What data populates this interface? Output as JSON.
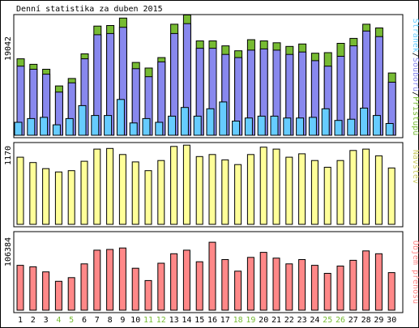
{
  "chart_data": [
    {
      "type": "bar",
      "title": "Denní statistika za duben 2015",
      "categories": [
        "1",
        "2",
        "3",
        "4",
        "5",
        "6",
        "7",
        "8",
        "9",
        "10",
        "11",
        "12",
        "13",
        "14",
        "15",
        "16",
        "17",
        "18",
        "19",
        "20",
        "21",
        "22",
        "23",
        "24",
        "25",
        "26",
        "27",
        "28",
        "29",
        "30"
      ],
      "weekend_days": [
        "4",
        "5",
        "11",
        "12",
        "18",
        "19",
        "25",
        "26"
      ],
      "y_tick_label": "19042",
      "ylim": [
        0,
        19042
      ],
      "series_legend": [
        "Stránek",
        "Souborů",
        "Přístupů"
      ],
      "series": [
        {
          "name": "Přístupů",
          "color": "#77bb33",
          "values": [
            12400,
            11500,
            10700,
            8000,
            9200,
            13200,
            17700,
            17800,
            19000,
            11800,
            10900,
            12600,
            18000,
            19500,
            15300,
            15300,
            14500,
            13700,
            15500,
            15300,
            15000,
            14400,
            14800,
            13300,
            13400,
            14900,
            15700,
            18000,
            17400,
            10100
          ]
        },
        {
          "name": "Souborů",
          "color": "#8888ee",
          "values": [
            11200,
            10700,
            9900,
            7000,
            8500,
            12400,
            16300,
            16500,
            17500,
            10800,
            9500,
            11900,
            16500,
            18100,
            14100,
            14100,
            13100,
            12600,
            13800,
            14000,
            13800,
            13100,
            13500,
            12100,
            11200,
            12800,
            14500,
            16900,
            16000,
            8600
          ]
        },
        {
          "name": "Stránek",
          "color": "#66ccff",
          "values": [
            2100,
            2700,
            2900,
            1700,
            2700,
            4800,
            3200,
            3200,
            5800,
            2000,
            2700,
            2100,
            3100,
            4500,
            3100,
            4300,
            5400,
            2300,
            2800,
            3100,
            3100,
            2800,
            2800,
            2900,
            4300,
            2400,
            2600,
            4400,
            3200,
            1900
          ]
        }
      ]
    },
    {
      "type": "bar",
      "y_tick_label": "1170",
      "ylim": [
        0,
        1170
      ],
      "series": [
        {
          "name": "Návštěv",
          "color": "#ffff99",
          "values": [
            1000,
            920,
            830,
            780,
            800,
            940,
            1120,
            1130,
            1040,
            930,
            800,
            950,
            1160,
            1180,
            1010,
            1040,
            960,
            890,
            1040,
            1150,
            1120,
            1000,
            1050,
            950,
            850,
            950,
            1100,
            1120,
            1020,
            840
          ]
        }
      ]
    },
    {
      "type": "bar",
      "y_tick_label": "106384",
      "ylim": [
        0,
        106384
      ],
      "series": [
        {
          "name": "Objem přenosu",
          "color": "#ff8888",
          "values": [
            62000,
            60000,
            53000,
            40000,
            45000,
            64000,
            83000,
            84000,
            86000,
            58000,
            41000,
            65000,
            78000,
            83000,
            67000,
            94000,
            70000,
            54000,
            73000,
            80000,
            72000,
            64000,
            70000,
            62000,
            51000,
            61000,
            69000,
            82000,
            78000,
            52000
          ]
        }
      ]
    }
  ]
}
